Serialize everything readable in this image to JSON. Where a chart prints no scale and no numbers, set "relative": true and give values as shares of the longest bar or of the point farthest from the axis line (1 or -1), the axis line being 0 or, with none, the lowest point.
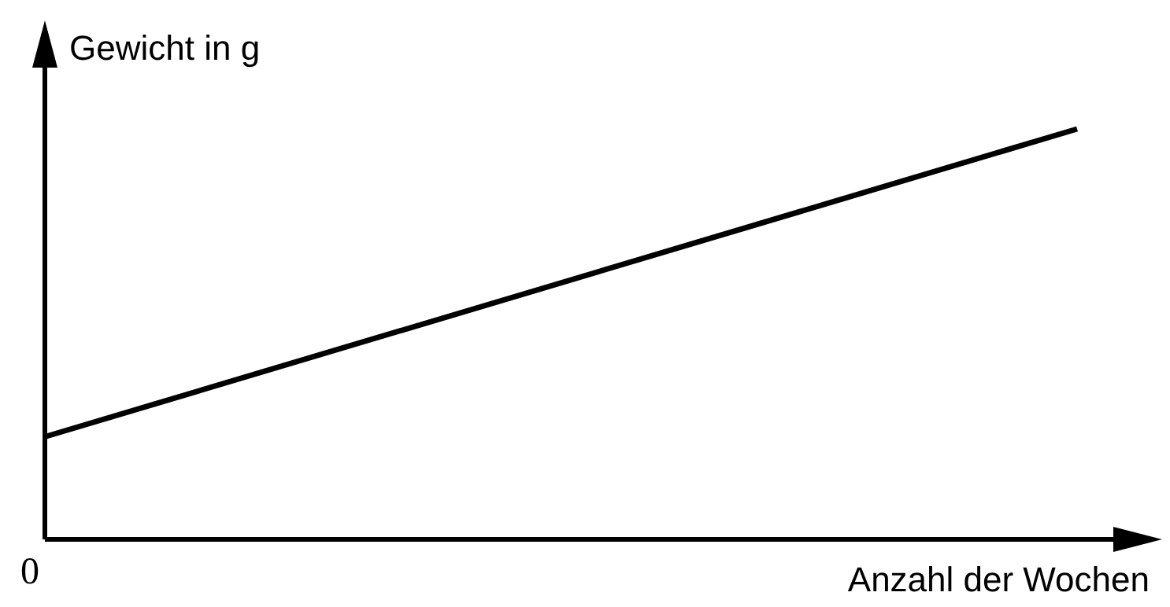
{
  "chart_data": {
    "type": "line",
    "xlabel": "Anzahl der Wochen",
    "ylabel": "Gewicht in g",
    "relative": true,
    "categories": [
      null,
      null
    ],
    "series": [
      {
        "color": "#000000",
        "values": [
          0.25,
          1
        ]
      }
    ],
    "annotations": [
      "0"
    ],
    "marker": "none",
    "line_style": "solid"
  }
}
